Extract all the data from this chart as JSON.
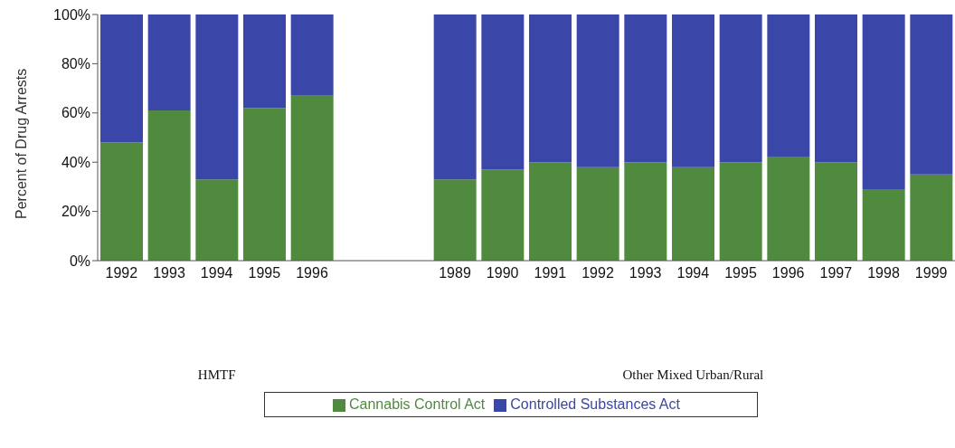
{
  "chart_data": {
    "type": "bar",
    "stacked": true,
    "ylabel": "Percent of Drug Arrests",
    "categories": [
      "1992",
      "1993",
      "1994",
      "1995",
      "1996",
      null,
      null,
      "1989",
      "1990",
      "1991",
      "1992",
      "1993",
      "1994",
      "1995",
      "1996",
      "1997",
      "1998",
      "1999"
    ],
    "series": [
      {
        "name": "Cannabis Control Act",
        "color": "#4f8a3f",
        "values": [
          48,
          61,
          33,
          62,
          67,
          null,
          null,
          33,
          37,
          40,
          38,
          40,
          38,
          40,
          42,
          40,
          29,
          35
        ]
      },
      {
        "name": "Controlled Substances Act",
        "color": "#3b47a8",
        "values": [
          52,
          39,
          67,
          38,
          33,
          null,
          null,
          67,
          63,
          60,
          62,
          60,
          62,
          60,
          58,
          60,
          71,
          65
        ]
      }
    ],
    "ylim": [
      0,
      100
    ],
    "yticks": [
      {
        "value": 0,
        "label": "0%"
      },
      {
        "value": 20,
        "label": "20%"
      },
      {
        "value": 40,
        "label": "40%"
      },
      {
        "value": 60,
        "label": "60%"
      },
      {
        "value": 80,
        "label": "80%"
      },
      {
        "value": 100,
        "label": "100%"
      }
    ],
    "annotations": [
      "HMTF",
      "Other Mixed Urban/Rural"
    ],
    "legend": "bottom"
  }
}
